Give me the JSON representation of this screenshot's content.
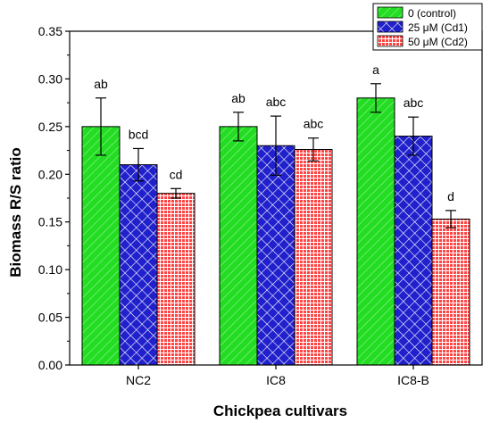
{
  "chart_data": {
    "type": "bar",
    "xlabel": "Chickpea cultivars",
    "ylabel": "Biomass R/S ratio",
    "ylim": [
      0,
      0.35
    ],
    "yticks": [
      "0.00",
      "0.05",
      "0.10",
      "0.15",
      "0.20",
      "0.25",
      "0.30",
      "0.35"
    ],
    "grid": false,
    "legend_position": "top-right",
    "categories": [
      "NC2",
      "IC8",
      "IC8-B"
    ],
    "series": [
      {
        "name": "0 (control)",
        "color": "#22dd22",
        "pattern": "diagonal-lines",
        "values": [
          0.25,
          0.25,
          0.28
        ],
        "errors": [
          0.03,
          0.015,
          0.015
        ],
        "labels": [
          "ab",
          "ab",
          "a"
        ]
      },
      {
        "name": "25 μM (Cd1)",
        "color": "#2222cc",
        "pattern": "crosshatch",
        "values": [
          0.21,
          0.23,
          0.24
        ],
        "errors": [
          0.017,
          0.031,
          0.02
        ],
        "labels": [
          "bcd",
          "abc",
          "abc"
        ]
      },
      {
        "name": "50 μM (Cd2)",
        "color": "#ff5555",
        "pattern": "grid",
        "values": [
          0.18,
          0.226,
          0.153
        ],
        "errors": [
          0.005,
          0.012,
          0.009
        ],
        "labels": [
          "cd",
          "abc",
          "d"
        ]
      }
    ]
  }
}
